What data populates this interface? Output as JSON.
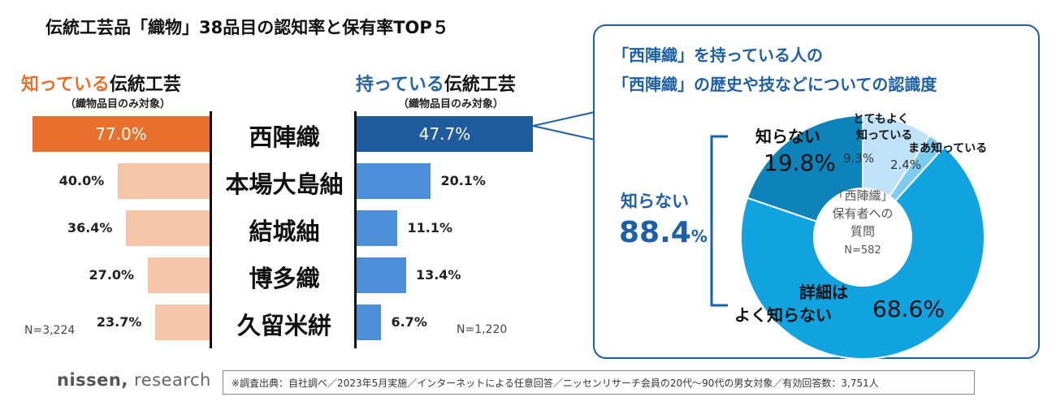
{
  "title": "伝統工芸品「織物」38品目の認知率と保有率TOP５",
  "left_header": {
    "highlight": "知っている",
    "rest": "伝統工芸",
    "sub": "（織物品目のみ対象）",
    "n": "N=3,224"
  },
  "right_header": {
    "highlight": "持っている",
    "rest": "伝統工芸",
    "sub": "（織物品目のみ対象）",
    "n": "N=1,220"
  },
  "panel": {
    "title_line1": "「西陣織」を持っている人の",
    "title_line2": "「西陣織」の歴史や技などについての認識度",
    "center_lines": [
      "「西陣織」",
      "保有者への",
      "質問"
    ],
    "center_n": "N=582",
    "bracket_label": "知らない",
    "bracket_value": "88.4",
    "bracket_unit": "%",
    "segment_labels": {
      "shiranai_name": "知らない",
      "shiranai_value": "19.8%",
      "totemo_name_1": "とてもよく",
      "totemo_name_2": "知っている",
      "totemo_value": "9.3%",
      "maa_name": "まあ知っている",
      "maa_value": "2.4%",
      "shosai_name_1": "詳細は",
      "shosai_name_2": "よく知らない",
      "shosai_value": "68.6%"
    }
  },
  "footer": {
    "note": "※調査出典：自社調べ／2023年5月実施／インターネットによる任意回答／ニッセンリサーチ会員の20代〜90代の男女対象／有効回答数：3,751人",
    "logo_a": "nissen,",
    "logo_b": "research"
  },
  "colors": {
    "left_top": "#e8702a",
    "left_rest": "#f6c4a7",
    "right_top": "#1f5c9e",
    "right_rest": "#4a8fd8",
    "donut_shiranai": "#0d83b9",
    "donut_totemo": "#bfe2f8",
    "donut_maa": "#7ccbf1",
    "donut_shosai": "#10a3e0"
  },
  "chart_data": [
    {
      "type": "bar",
      "orientation": "horizontal",
      "title": "知っている伝統工芸（織物品目のみ対象）",
      "categories": [
        "西陣織",
        "本場大島紬",
        "結城紬",
        "博多織",
        "久留米絣"
      ],
      "values": [
        77.0,
        40.0,
        36.4,
        27.0,
        23.7
      ],
      "labels": [
        "77.0%",
        "40.0%",
        "36.4%",
        "27.0%",
        "23.7%"
      ],
      "unit": "%",
      "n": "N=3,224"
    },
    {
      "type": "bar",
      "orientation": "horizontal",
      "title": "持っている伝統工芸（織物品目のみ対象）",
      "categories": [
        "西陣織",
        "本場大島紬",
        "結城紬",
        "博多織",
        "久留米絣"
      ],
      "values": [
        47.7,
        20.1,
        11.1,
        13.4,
        6.7
      ],
      "labels": [
        "47.7%",
        "20.1%",
        "11.1%",
        "13.4%",
        "6.7%"
      ],
      "unit": "%",
      "n": "N=1,220"
    },
    {
      "type": "pie",
      "title": "「西陣織」の歴史や技などについての認識度",
      "categories": [
        "とてもよく知っている",
        "まあ知っている",
        "詳細はよく知らない",
        "知らない"
      ],
      "values": [
        9.3,
        2.4,
        68.6,
        19.8
      ],
      "n": "N=582"
    }
  ]
}
